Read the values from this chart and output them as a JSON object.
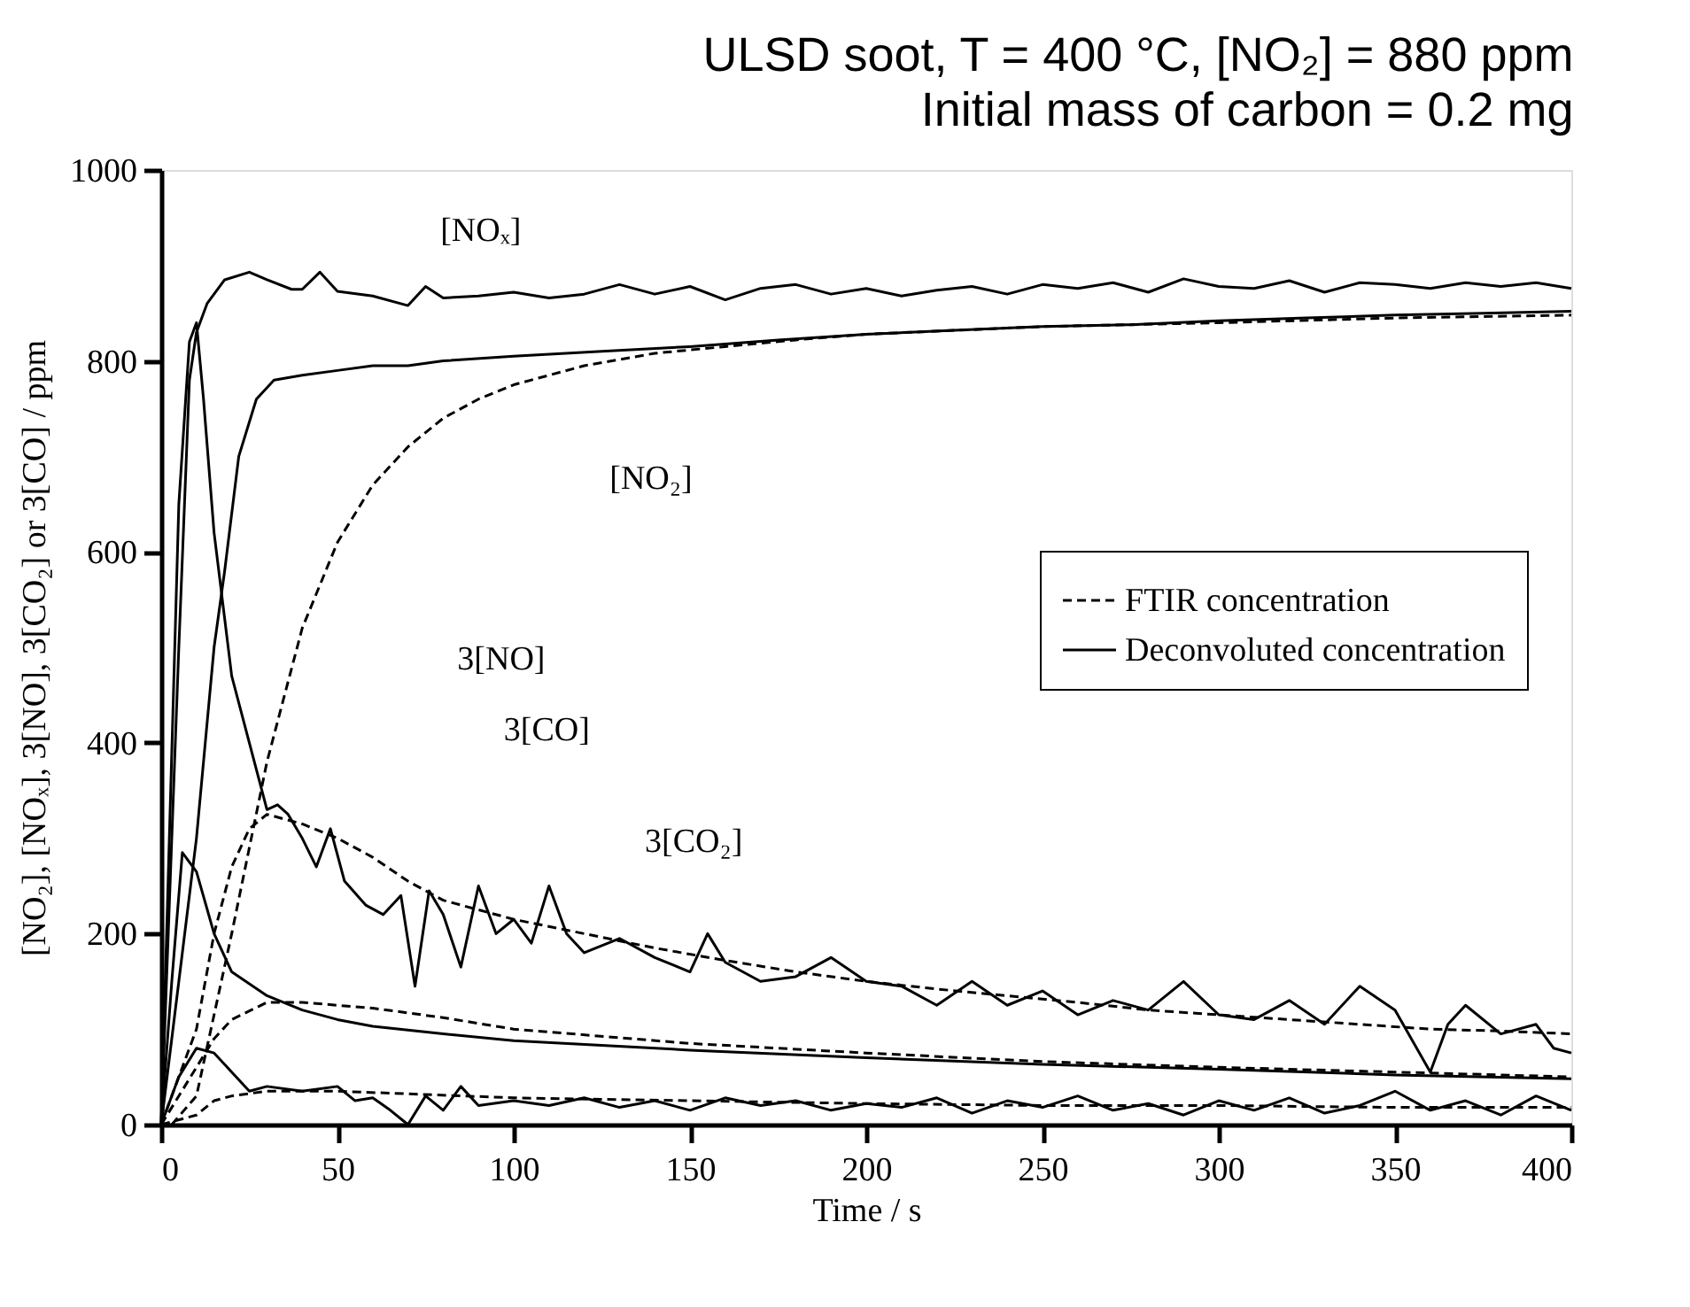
{
  "chart_data": {
    "type": "line",
    "title": "ULSD soot, T = 400 °C, [NO₂] = 880 ppm",
    "subtitle": "Initial mass of carbon = 0.2 mg",
    "xlabel": "Time / s",
    "ylabel": "[NO₂], [NOₓ], 3[NO], 3[CO₂] or 3[CO] / ppm",
    "xlim": [
      0,
      400
    ],
    "xticks": [
      0,
      50,
      100,
      150,
      200,
      250,
      300,
      350,
      400
    ],
    "ylim": [
      0,
      1000
    ],
    "yticks": [
      0,
      200,
      400,
      600,
      800,
      1000
    ],
    "grid": false,
    "legend": "right",
    "marker": "none",
    "annotations": [
      "[NOₓ]",
      "[NO₂]",
      "3[NO]",
      "3[CO]",
      "3[CO₂]"
    ],
    "series": [
      {
        "name": "FTIR concentration",
        "color": "#000000",
        "line_style": "dashed",
        "x": [
          3,
          10,
          20,
          30,
          40,
          50,
          60,
          70,
          80,
          90,
          100,
          120,
          140,
          160,
          180,
          200,
          250,
          300,
          350,
          400
        ],
        "values": [
          0,
          30,
          200,
          380,
          520,
          610,
          670,
          710,
          740,
          760,
          775,
          795,
          808,
          815,
          822,
          828,
          836,
          840,
          845,
          848
        ]
      },
      {
        "color": "#000000",
        "line_style": "dashed",
        "x": [
          0,
          10,
          15,
          20,
          25,
          30,
          40,
          50,
          60,
          70,
          80,
          90,
          100,
          120,
          140,
          160,
          180,
          200,
          220,
          240,
          260,
          280,
          300,
          320,
          340,
          360,
          380,
          400
        ],
        "values": [
          0,
          100,
          200,
          270,
          310,
          325,
          315,
          300,
          280,
          255,
          235,
          225,
          215,
          200,
          185,
          172,
          160,
          150,
          142,
          135,
          128,
          120,
          115,
          110,
          105,
          100,
          98,
          95
        ]
      },
      {
        "color": "#000000",
        "line_style": "dashed",
        "x": [
          0,
          10,
          15,
          20,
          30,
          40,
          60,
          80,
          100,
          150,
          200,
          250,
          300,
          350,
          400
        ],
        "values": [
          0,
          60,
          90,
          110,
          128,
          128,
          122,
          112,
          100,
          85,
          75,
          66,
          60,
          55,
          50
        ]
      },
      {
        "color": "#000000",
        "line_style": "dashed",
        "x": [
          0,
          10,
          15,
          20,
          30,
          50,
          100,
          150,
          200,
          250,
          300,
          350,
          400
        ],
        "values": [
          0,
          10,
          25,
          30,
          35,
          35,
          28,
          25,
          22,
          20,
          20,
          18,
          18
        ]
      },
      {
        "name": "Deconvoluted concentration",
        "color": "#000000",
        "line_style": "solid",
        "x": [
          0,
          5,
          8,
          10,
          13,
          18,
          25,
          30,
          37,
          40,
          45,
          50,
          60,
          70,
          75,
          80,
          90,
          100,
          110,
          120,
          130,
          140,
          150,
          160,
          170,
          180,
          190,
          200,
          210,
          220,
          230,
          240,
          250,
          260,
          270,
          280,
          290,
          300,
          310,
          320,
          330,
          340,
          350,
          360,
          370,
          380,
          390,
          400
        ],
        "values": [
          0,
          500,
          780,
          830,
          860,
          885,
          893,
          885,
          875,
          875,
          893,
          873,
          868,
          858,
          878,
          866,
          868,
          872,
          866,
          870,
          880,
          870,
          878,
          864,
          876,
          880,
          870,
          876,
          868,
          874,
          878,
          870,
          880,
          876,
          882,
          872,
          886,
          878,
          876,
          884,
          872,
          882,
          880,
          876,
          882,
          878,
          882,
          876
        ]
      },
      {
        "color": "#000000",
        "line_style": "solid",
        "x": [
          0,
          10,
          15,
          18,
          22,
          27,
          32,
          40,
          50,
          60,
          70,
          80,
          100,
          125,
          150,
          175,
          200,
          225,
          250,
          275,
          300,
          325,
          350,
          375,
          400
        ],
        "values": [
          0,
          300,
          500,
          580,
          700,
          760,
          780,
          785,
          790,
          795,
          795,
          800,
          805,
          810,
          815,
          822,
          828,
          832,
          836,
          838,
          842,
          845,
          848,
          850,
          852
        ]
      },
      {
        "color": "#000000",
        "line_style": "solid",
        "x": [
          0,
          5,
          8,
          10,
          12,
          15,
          20,
          25,
          30,
          33,
          36,
          40,
          44,
          48,
          52,
          58,
          63,
          68,
          72,
          76,
          80,
          85,
          90,
          95,
          100,
          105,
          110,
          115,
          120,
          130,
          140,
          150,
          155,
          160,
          170,
          180,
          190,
          200,
          210,
          220,
          230,
          240,
          250,
          260,
          270,
          280,
          290,
          300,
          310,
          320,
          330,
          340,
          350,
          360,
          365,
          370,
          380,
          390,
          395,
          400
        ],
        "values": [
          0,
          650,
          820,
          840,
          760,
          620,
          470,
          400,
          330,
          335,
          325,
          300,
          270,
          310,
          255,
          230,
          220,
          240,
          145,
          245,
          220,
          165,
          250,
          200,
          215,
          190,
          250,
          200,
          180,
          195,
          175,
          160,
          200,
          170,
          150,
          155,
          175,
          150,
          145,
          125,
          150,
          125,
          140,
          115,
          130,
          120,
          150,
          115,
          110,
          130,
          105,
          145,
          120,
          55,
          105,
          125,
          95,
          105,
          80,
          75
        ]
      },
      {
        "color": "#000000",
        "line_style": "solid",
        "x": [
          0,
          3,
          6,
          10,
          15,
          20,
          30,
          40,
          50,
          60,
          80,
          100,
          150,
          200,
          250,
          300,
          350,
          400
        ],
        "values": [
          0,
          150,
          285,
          265,
          200,
          160,
          135,
          120,
          110,
          103,
          95,
          88,
          78,
          70,
          63,
          58,
          52,
          48
        ]
      },
      {
        "color": "#000000",
        "line_style": "solid",
        "x": [
          0,
          5,
          10,
          15,
          20,
          25,
          30,
          40,
          50,
          55,
          60,
          65,
          70,
          75,
          80,
          85,
          90,
          100,
          110,
          120,
          130,
          140,
          150,
          160,
          170,
          180,
          190,
          200,
          210,
          220,
          230,
          240,
          250,
          260,
          270,
          280,
          290,
          300,
          310,
          320,
          330,
          340,
          350,
          360,
          370,
          380,
          390,
          400
        ],
        "values": [
          0,
          50,
          80,
          75,
          55,
          35,
          40,
          35,
          40,
          25,
          28,
          15,
          0,
          30,
          15,
          40,
          20,
          25,
          20,
          28,
          18,
          25,
          15,
          28,
          20,
          25,
          15,
          22,
          18,
          28,
          12,
          25,
          18,
          30,
          15,
          22,
          10,
          25,
          15,
          28,
          12,
          20,
          35,
          15,
          25,
          10,
          30,
          15
        ]
      }
    ]
  }
}
